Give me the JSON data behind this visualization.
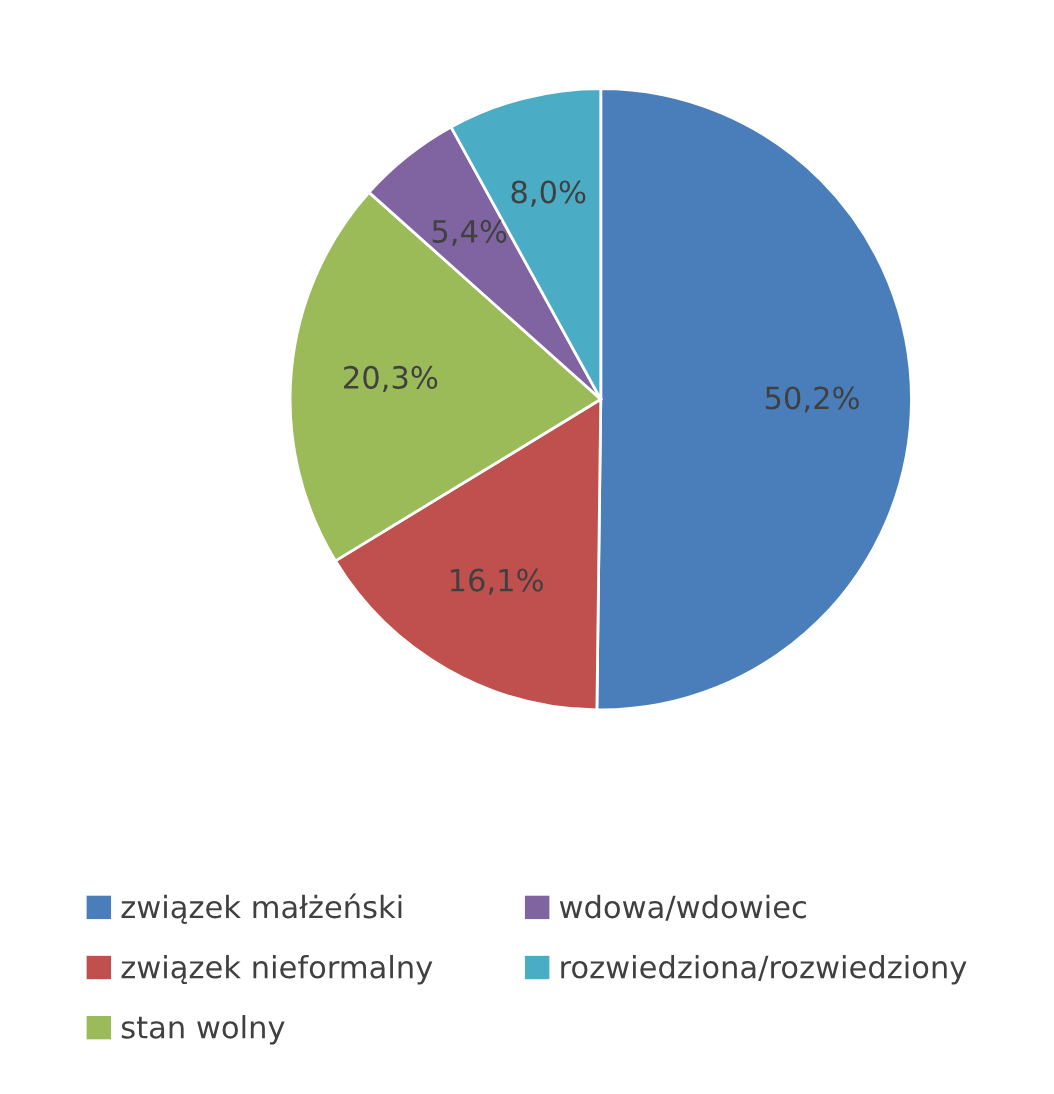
{
  "chart_data": {
    "type": "pie",
    "categories": [
      "związek małżeński",
      "związek nieformalny",
      "stan wolny",
      "wdowa/wdowiec",
      "rozwiedziona/rozwiedziony"
    ],
    "values": [
      50.2,
      16.1,
      20.3,
      5.4,
      8.0
    ],
    "value_labels": [
      "50,2%",
      "16,1%",
      "20,3%",
      "5,4%",
      "8,0%"
    ],
    "colors": [
      "#4a7ebb",
      "#c0504d",
      "#9bbb59",
      "#8064a2",
      "#4bacc6"
    ],
    "legend": "bottom"
  }
}
